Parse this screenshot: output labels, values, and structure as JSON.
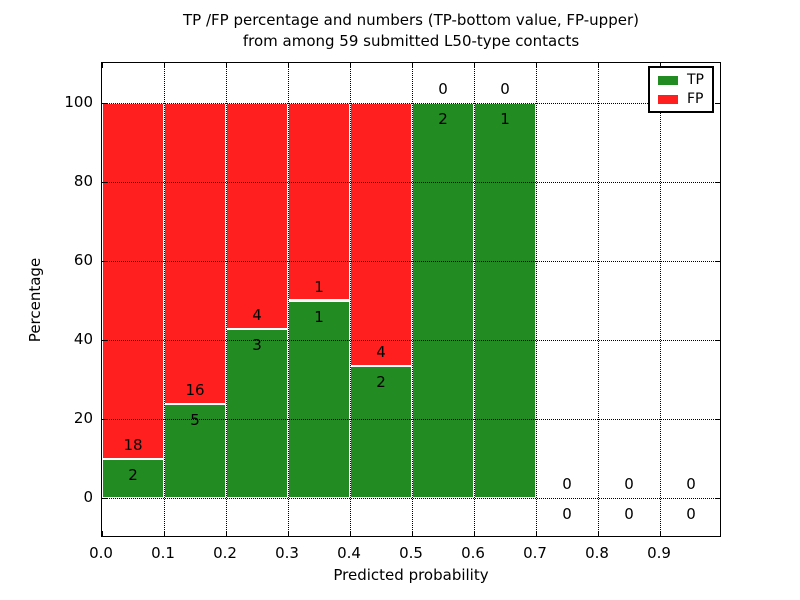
{
  "chart_data": {
    "type": "bar",
    "stacked": true,
    "title_line1": "TP /FP percentage and numbers (TP-bottom value, FP-upper)",
    "title_line2": "from among 59 submitted L50-type contacts",
    "xlabel": "Predicted probability",
    "ylabel": "Percentage",
    "total_contacts": 59,
    "xlim": [
      0.0,
      1.0
    ],
    "ylim": [
      -10,
      110
    ],
    "grid": "dotted",
    "legend_position": "upper right",
    "x_ticks": [
      {
        "value": 0.0,
        "label": "0.0"
      },
      {
        "value": 0.1,
        "label": "0.1"
      },
      {
        "value": 0.2,
        "label": "0.2"
      },
      {
        "value": 0.3,
        "label": "0.3"
      },
      {
        "value": 0.4,
        "label": "0.4"
      },
      {
        "value": 0.5,
        "label": "0.5"
      },
      {
        "value": 0.6,
        "label": "0.6"
      },
      {
        "value": 0.7,
        "label": "0.7"
      },
      {
        "value": 0.8,
        "label": "0.8"
      },
      {
        "value": 0.9,
        "label": "0.9"
      }
    ],
    "y_ticks": [
      {
        "value": 0,
        "label": "0"
      },
      {
        "value": 20,
        "label": "20"
      },
      {
        "value": 40,
        "label": "40"
      },
      {
        "value": 60,
        "label": "60"
      },
      {
        "value": 80,
        "label": "80"
      },
      {
        "value": 100,
        "label": "100"
      }
    ],
    "bins": [
      {
        "range": "0.0-0.1",
        "tp": 2,
        "fp": 18,
        "tp_pct": 10.0,
        "fp_pct": 90.0
      },
      {
        "range": "0.1-0.2",
        "tp": 5,
        "fp": 16,
        "tp_pct": 23.81,
        "fp_pct": 76.19
      },
      {
        "range": "0.2-0.3",
        "tp": 3,
        "fp": 4,
        "tp_pct": 42.86,
        "fp_pct": 57.14
      },
      {
        "range": "0.3-0.4",
        "tp": 1,
        "fp": 1,
        "tp_pct": 50.0,
        "fp_pct": 50.0
      },
      {
        "range": "0.4-0.5",
        "tp": 2,
        "fp": 4,
        "tp_pct": 33.33,
        "fp_pct": 66.67
      },
      {
        "range": "0.5-0.6",
        "tp": 2,
        "fp": 0,
        "tp_pct": 100.0,
        "fp_pct": 0.0
      },
      {
        "range": "0.6-0.7",
        "tp": 1,
        "fp": 0,
        "tp_pct": 100.0,
        "fp_pct": 0.0
      },
      {
        "range": "0.7-0.8",
        "tp": 0,
        "fp": 0,
        "tp_pct": 0.0,
        "fp_pct": 0.0
      },
      {
        "range": "0.8-0.9",
        "tp": 0,
        "fp": 0,
        "tp_pct": 0.0,
        "fp_pct": 0.0
      },
      {
        "range": "0.9-1.0",
        "tp": 0,
        "fp": 0,
        "tp_pct": 0.0,
        "fp_pct": 0.0
      }
    ],
    "legend": [
      {
        "label": "TP",
        "color": "#228b22"
      },
      {
        "label": "FP",
        "color": "#ff1f1f"
      }
    ],
    "colors": {
      "tp": "#228b22",
      "fp": "#ff1f1f",
      "bar_edge": "#ffffff",
      "grid": "#000000",
      "text": "#000000",
      "background": "#ffffff"
    }
  }
}
